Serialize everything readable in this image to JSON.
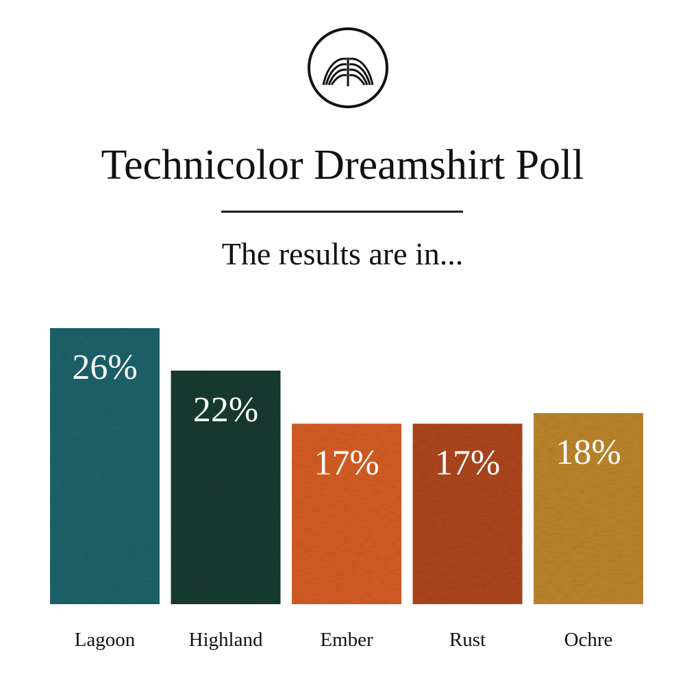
{
  "chart_data": {
    "type": "bar",
    "title": "Technicolor Dreamshirt Poll",
    "subtitle": "The results are in...",
    "categories": [
      "Lagoon",
      "Highland",
      "Ember",
      "Rust",
      "Ochre"
    ],
    "values": [
      26,
      22,
      17,
      17,
      18
    ],
    "value_labels": [
      "26%",
      "22%",
      "17%",
      "17%",
      "18%"
    ],
    "colors": [
      "#1c5f68",
      "#17392f",
      "#cf5a22",
      "#a8441c",
      "#b8812c"
    ]
  }
}
